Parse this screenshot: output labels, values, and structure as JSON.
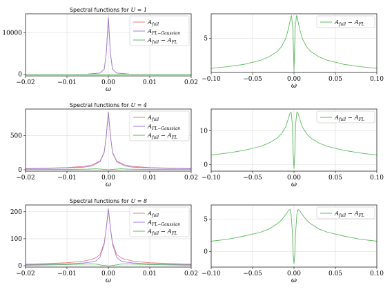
{
  "chart_data": [
    {
      "type": "line",
      "title_prefix": "Spectral functions for ",
      "title_math": "U = 1",
      "xlabel": "ω",
      "xlim": [
        -0.02,
        0.02
      ],
      "ylim": [
        -400,
        14600
      ],
      "xticks": [
        "−0.02",
        "−0.01",
        "0.00",
        "0.01",
        "0.02"
      ],
      "xtick_values": [
        -0.02,
        -0.01,
        0.0,
        0.01,
        0.02
      ],
      "yticks": [
        "0",
        "10000"
      ],
      "ytick_values": [
        0,
        10000
      ],
      "grid": true,
      "legend": "top-right",
      "series": [
        {
          "name": "A_full",
          "label_main": "A",
          "label_sub": "full",
          "color": "#e8787d",
          "x": [
            -0.02,
            -0.01,
            -0.005,
            -0.002,
            -0.001,
            -0.0005,
            0,
            0.0005,
            0.001,
            0.002,
            0.005,
            0.01,
            0.02
          ],
          "values": [
            3,
            12,
            50,
            300,
            1200,
            5000,
            13700,
            5000,
            1200,
            300,
            50,
            12,
            3
          ]
        },
        {
          "name": "A_FL-Gaussian",
          "label_main": "A",
          "label_sub": "FL−Gaussian",
          "color": "#9a7fd6",
          "x": [
            -0.02,
            -0.01,
            -0.005,
            -0.002,
            -0.001,
            -0.0005,
            0,
            0.0005,
            0.001,
            0.002,
            0.005,
            0.01,
            0.02
          ],
          "values": [
            3,
            12,
            50,
            300,
            1200,
            5000,
            13700,
            5000,
            1200,
            300,
            50,
            12,
            3
          ]
        },
        {
          "name": "A_full − A_FL",
          "label_main": "A",
          "label_sub": "full",
          "label_rest": " − A",
          "label_sub2": "FL",
          "color": "#5cb85c",
          "x": [
            -0.02,
            0,
            0.02
          ],
          "values": [
            1,
            0,
            1
          ]
        }
      ]
    },
    {
      "type": "line",
      "xlabel": "ω",
      "xlim": [
        -0.1,
        0.1
      ],
      "ylim": [
        0,
        8.6
      ],
      "xticks": [
        "−0.10",
        "−0.05",
        "0.00",
        "0.05",
        "0.10"
      ],
      "xtick_values": [
        -0.1,
        -0.05,
        0.0,
        0.05,
        0.1
      ],
      "yticks": [
        "5"
      ],
      "ytick_values": [
        5
      ],
      "grid": true,
      "legend": "top-right",
      "series": [
        {
          "name": "A_full − A_FL",
          "label_main": "A",
          "label_sub": "full",
          "label_rest": " − A",
          "label_sub2": "FL",
          "color": "#5cb85c",
          "x": [
            -0.1,
            -0.08,
            -0.06,
            -0.04,
            -0.03,
            -0.02,
            -0.015,
            -0.01,
            -0.007,
            -0.005,
            -0.004,
            -0.003,
            -0.0015,
            -0.0005,
            0,
            0.0005,
            0.0015,
            0.003,
            0.004,
            0.005,
            0.007,
            0.01,
            0.015,
            0.02,
            0.03,
            0.04,
            0.06,
            0.08,
            0.1
          ],
          "values": [
            0.6,
            0.85,
            1.2,
            1.8,
            2.3,
            3.1,
            3.8,
            5.0,
            6.3,
            7.4,
            8.1,
            8.3,
            6.5,
            2.5,
            0.1,
            2.5,
            6.5,
            8.3,
            8.1,
            7.4,
            6.3,
            5.0,
            3.8,
            3.1,
            2.3,
            1.8,
            1.2,
            0.85,
            0.6
          ]
        }
      ]
    },
    {
      "type": "line",
      "title_prefix": "Spectral functions for ",
      "title_math": "U = 4",
      "xlabel": "ω",
      "xlim": [
        -0.02,
        0.02
      ],
      "ylim": [
        -20,
        890
      ],
      "xticks": [
        "−0.02",
        "−0.01",
        "0.00",
        "0.01",
        "0.02"
      ],
      "xtick_values": [
        -0.02,
        -0.01,
        0.0,
        0.01,
        0.02
      ],
      "yticks": [
        "0",
        "500"
      ],
      "ytick_values": [
        0,
        500
      ],
      "grid": true,
      "legend": "top-right",
      "series": [
        {
          "name": "A_full",
          "label_main": "A",
          "label_sub": "full",
          "color": "#e8787d",
          "x": [
            -0.02,
            -0.015,
            -0.01,
            -0.006,
            -0.004,
            -0.002,
            -0.001,
            -0.0005,
            0,
            0.0005,
            0.001,
            0.002,
            0.004,
            0.006,
            0.01,
            0.015,
            0.02
          ],
          "values": [
            18,
            23,
            32,
            50,
            70,
            130,
            260,
            500,
            850,
            500,
            260,
            130,
            70,
            50,
            32,
            23,
            18
          ]
        },
        {
          "name": "A_FL-Gaussian",
          "label_main": "A",
          "label_sub": "FL−Gaussian",
          "color": "#9a7fd6",
          "x": [
            -0.02,
            -0.015,
            -0.01,
            -0.006,
            -0.004,
            -0.002,
            -0.001,
            -0.0005,
            0,
            0.0005,
            0.001,
            0.002,
            0.004,
            0.006,
            0.01,
            0.015,
            0.02
          ],
          "values": [
            15,
            19,
            27,
            38,
            55,
            120,
            250,
            495,
            845,
            495,
            250,
            120,
            55,
            38,
            27,
            19,
            15
          ]
        },
        {
          "name": "A_full − A_FL",
          "label_main": "A",
          "label_sub": "full",
          "label_rest": " − A",
          "label_sub2": "FL",
          "color": "#5cb85c",
          "x": [
            -0.02,
            -0.01,
            -0.005,
            -0.003,
            -0.0015,
            0,
            0.0015,
            0.003,
            0.005,
            0.01,
            0.02
          ],
          "values": [
            3,
            5,
            10,
            15,
            8,
            0,
            8,
            15,
            10,
            5,
            3
          ]
        }
      ]
    },
    {
      "type": "line",
      "xlabel": "ω",
      "xlim": [
        -0.1,
        0.1
      ],
      "ylim": [
        -2,
        16.5
      ],
      "xticks": [
        "−0.10",
        "−0.05",
        "0.00",
        "0.05",
        "0.10"
      ],
      "xtick_values": [
        -0.1,
        -0.05,
        0.0,
        0.05,
        0.1
      ],
      "yticks": [
        "0",
        "10"
      ],
      "ytick_values": [
        0,
        10
      ],
      "grid": true,
      "legend": "top-right",
      "series": [
        {
          "name": "A_full − A_FL",
          "label_main": "A",
          "label_sub": "full",
          "label_rest": " − A",
          "label_sub2": "FL",
          "color": "#5cb85c",
          "x": [
            -0.1,
            -0.08,
            -0.06,
            -0.04,
            -0.03,
            -0.02,
            -0.015,
            -0.01,
            -0.007,
            -0.005,
            -0.0035,
            -0.002,
            -0.001,
            0,
            0.001,
            0.002,
            0.0035,
            0.005,
            0.007,
            0.01,
            0.015,
            0.02,
            0.03,
            0.04,
            0.06,
            0.08,
            0.1
          ],
          "values": [
            2.8,
            3.4,
            4.2,
            5.4,
            6.4,
            7.9,
            9.2,
            11.2,
            13.5,
            15.2,
            15.6,
            12.0,
            3.0,
            -1.2,
            3.0,
            12.0,
            15.6,
            15.2,
            13.5,
            11.2,
            9.2,
            7.9,
            6.4,
            5.4,
            4.2,
            3.4,
            2.8
          ]
        }
      ]
    },
    {
      "type": "line",
      "title_prefix": "Spectral functions for ",
      "title_math": "U = 8",
      "xlabel": "ω",
      "xlim": [
        -0.02,
        0.02
      ],
      "ylim": [
        -5,
        225
      ],
      "xticks": [
        "−0.02",
        "−0.01",
        "0.00",
        "0.01",
        "0.02"
      ],
      "xtick_values": [
        -0.02,
        -0.01,
        0.0,
        0.01,
        0.02
      ],
      "yticks": [
        "0",
        "100",
        "200"
      ],
      "ytick_values": [
        0,
        100,
        200
      ],
      "grid": true,
      "legend": "top-right",
      "series": [
        {
          "name": "A_full",
          "label_main": "A",
          "label_sub": "full",
          "color": "#e8787d",
          "x": [
            -0.02,
            -0.015,
            -0.01,
            -0.006,
            -0.004,
            -0.003,
            -0.002,
            -0.001,
            -0.0005,
            0,
            0.0005,
            0.001,
            0.002,
            0.003,
            0.004,
            0.006,
            0.01,
            0.015,
            0.02
          ],
          "values": [
            6,
            8,
            11,
            17,
            24,
            30,
            42,
            85,
            140,
            212,
            140,
            85,
            42,
            30,
            24,
            17,
            11,
            8,
            6
          ]
        },
        {
          "name": "A_FL-Gaussian",
          "label_main": "A",
          "label_sub": "FL−Gaussian",
          "color": "#9a7fd6",
          "x": [
            -0.02,
            -0.015,
            -0.01,
            -0.006,
            -0.004,
            -0.003,
            -0.002,
            -0.001,
            -0.0005,
            0,
            0.0005,
            0.001,
            0.002,
            0.003,
            0.004,
            0.006,
            0.01,
            0.015,
            0.02
          ],
          "values": [
            4,
            5,
            7,
            10,
            14,
            18,
            32,
            80,
            138,
            211,
            138,
            80,
            32,
            18,
            14,
            10,
            7,
            5,
            4
          ]
        },
        {
          "name": "A_full − A_FL",
          "label_main": "A",
          "label_sub": "full",
          "label_rest": " − A",
          "label_sub2": "FL",
          "color": "#5cb85c",
          "x": [
            -0.02,
            -0.01,
            -0.006,
            -0.004,
            -0.003,
            -0.0015,
            0,
            0.0015,
            0.003,
            0.004,
            0.006,
            0.01,
            0.02
          ],
          "values": [
            2,
            4,
            6,
            7,
            6,
            2,
            -1,
            2,
            6,
            7,
            6,
            4,
            2
          ]
        }
      ]
    },
    {
      "type": "line",
      "xlabel": "ω",
      "xlim": [
        -0.1,
        0.1
      ],
      "ylim": [
        -2.4,
        7.2
      ],
      "xticks": [
        "−0.10",
        "−0.05",
        "0.00",
        "0.05",
        "0.10"
      ],
      "xtick_values": [
        -0.1,
        -0.05,
        0.0,
        0.05,
        0.1
      ],
      "yticks": [
        "0",
        "5"
      ],
      "ytick_values": [
        0,
        5
      ],
      "grid": true,
      "legend": "top-right",
      "series": [
        {
          "name": "A_full − A_FL",
          "label_main": "A",
          "label_sub": "full",
          "label_rest": " − A",
          "label_sub2": "FL",
          "color": "#5cb85c",
          "x": [
            -0.1,
            -0.08,
            -0.06,
            -0.04,
            -0.03,
            -0.02,
            -0.015,
            -0.01,
            -0.007,
            -0.005,
            -0.0035,
            -0.002,
            -0.001,
            0,
            0.001,
            0.002,
            0.0035,
            0.005,
            0.007,
            0.01,
            0.015,
            0.02,
            0.03,
            0.04,
            0.06,
            0.08,
            0.1
          ],
          "values": [
            1.6,
            1.9,
            2.4,
            3.0,
            3.5,
            4.3,
            4.9,
            5.7,
            6.3,
            6.5,
            5.8,
            3.0,
            -0.5,
            -1.9,
            -0.5,
            3.0,
            5.8,
            6.5,
            6.3,
            5.7,
            4.9,
            4.3,
            3.5,
            3.0,
            2.4,
            1.9,
            1.6
          ]
        }
      ]
    }
  ]
}
